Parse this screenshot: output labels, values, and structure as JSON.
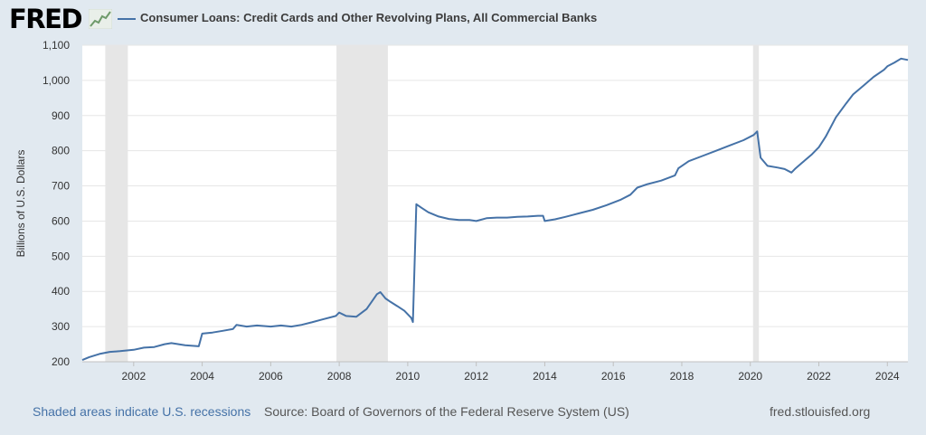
{
  "header": {
    "logo": "FRED",
    "logo_icon": "trend-graph-icon",
    "series_title": "Consumer Loans: Credit Cards and Other Revolving Plans, All Commercial Banks"
  },
  "footer": {
    "recession_note": "Shaded areas indicate U.S. recessions",
    "source": "Source: Board of Governors of the Federal Reserve System (US)",
    "site": "fred.stlouisfed.org"
  },
  "colors": {
    "series": "#4572a7",
    "recession": "#e6e6e6",
    "background": "#e1e9f0"
  },
  "chart_data": {
    "type": "line",
    "title": "Consumer Loans: Credit Cards and Other Revolving Plans, All Commercial Banks",
    "xlabel": "",
    "ylabel": "Billions of U.S. Dollars",
    "xlim": [
      2000.5,
      2024.6
    ],
    "ylim": [
      200,
      1100
    ],
    "y_ticks": [
      200,
      300,
      400,
      500,
      600,
      700,
      800,
      900,
      1000,
      1100
    ],
    "y_tick_labels": [
      "200",
      "300",
      "400",
      "500",
      "600",
      "700",
      "800",
      "900",
      "1,000",
      "1,100"
    ],
    "x_ticks": [
      2002,
      2004,
      2006,
      2008,
      2010,
      2012,
      2014,
      2016,
      2018,
      2020,
      2022,
      2024
    ],
    "grid": "horizontal",
    "recessions": [
      [
        2001.17,
        2001.83
      ],
      [
        2007.92,
        2009.42
      ],
      [
        2020.08,
        2020.25
      ]
    ],
    "series": [
      {
        "x": [
          2000.5,
          2000.7,
          2001.0,
          2001.3,
          2001.6,
          2002.0,
          2002.3,
          2002.6,
          2002.9,
          2003.1,
          2003.5,
          2003.9,
          2004.0,
          2004.3,
          2004.6,
          2004.9,
          2005.0,
          2005.3,
          2005.6,
          2006.0,
          2006.3,
          2006.6,
          2006.9,
          2007.2,
          2007.5,
          2007.9,
          2008.0,
          2008.2,
          2008.5,
          2008.8,
          2009.0,
          2009.1,
          2009.2,
          2009.35,
          2009.5,
          2009.7,
          2009.9,
          2010.1,
          2010.15,
          2010.25,
          2010.4,
          2010.6,
          2010.9,
          2011.2,
          2011.5,
          2011.8,
          2012.0,
          2012.3,
          2012.6,
          2012.9,
          2013.2,
          2013.5,
          2013.8,
          2013.95,
          2014.0,
          2014.3,
          2014.6,
          2015.0,
          2015.4,
          2015.8,
          2016.2,
          2016.5,
          2016.7,
          2017.0,
          2017.4,
          2017.8,
          2017.9,
          2018.2,
          2018.6,
          2019.0,
          2019.4,
          2019.8,
          2020.1,
          2020.2,
          2020.3,
          2020.5,
          2020.8,
          2021.0,
          2021.2,
          2021.3,
          2021.5,
          2021.8,
          2022.0,
          2022.2,
          2022.5,
          2022.8,
          2023.0,
          2023.3,
          2023.6,
          2023.9,
          2024.0,
          2024.2,
          2024.4,
          2024.6
        ],
        "y": [
          205,
          213,
          222,
          228,
          230,
          234,
          240,
          242,
          250,
          253,
          247,
          244,
          280,
          283,
          288,
          293,
          305,
          300,
          303,
          300,
          303,
          300,
          305,
          312,
          320,
          330,
          340,
          330,
          328,
          350,
          378,
          392,
          398,
          380,
          370,
          358,
          345,
          325,
          313,
          648,
          638,
          625,
          613,
          606,
          603,
          603,
          600,
          608,
          610,
          610,
          612,
          613,
          615,
          615,
          600,
          605,
          612,
          622,
          632,
          645,
          660,
          675,
          695,
          705,
          715,
          730,
          750,
          770,
          785,
          800,
          815,
          830,
          845,
          855,
          780,
          757,
          752,
          748,
          738,
          748,
          765,
          790,
          810,
          840,
          895,
          935,
          960,
          985,
          1010,
          1030,
          1040,
          1050,
          1062,
          1058
        ]
      }
    ]
  }
}
